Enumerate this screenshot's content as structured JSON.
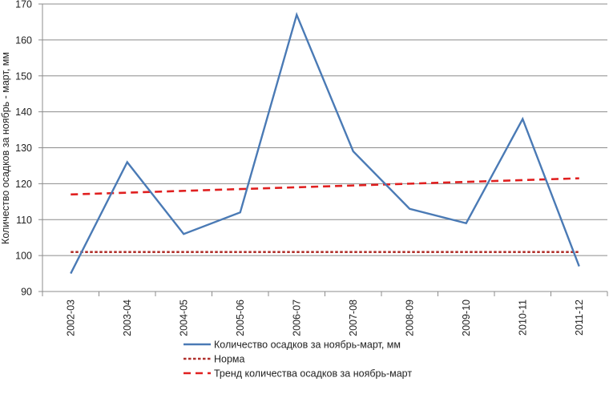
{
  "chart_data": {
    "type": "line",
    "categories": [
      "2002-03",
      "2003-04",
      "2004-05",
      "2005-06",
      "2006-07",
      "2007-08",
      "2008-09",
      "2009-10",
      "2010-11",
      "2011-12"
    ],
    "series": [
      {
        "name": "Количество осадков за ноябрь-март, мм",
        "values": [
          95,
          126,
          106,
          112,
          167,
          129,
          113,
          109,
          138,
          97
        ],
        "color": "#4a7ab5",
        "style": "solid"
      },
      {
        "name": "Норма",
        "values": [
          101,
          101,
          101,
          101,
          101,
          101,
          101,
          101,
          101,
          101
        ],
        "color": "#b0302c",
        "style": "dotted"
      },
      {
        "name": "Тренд количества осадков за ноябрь-март",
        "values": [
          117,
          117.5,
          118,
          118.5,
          119,
          119.5,
          120,
          120.5,
          121,
          121.5
        ],
        "color": "#e02020",
        "style": "dashed"
      }
    ],
    "title": "",
    "xlabel": "",
    "ylabel": "Количество осадков за ноябрь - март, мм",
    "ylim": [
      90,
      170
    ],
    "yticks": [
      "90",
      "100",
      "110",
      "120",
      "130",
      "140",
      "150",
      "160",
      "170"
    ],
    "grid": true,
    "legend_position": "bottom"
  }
}
